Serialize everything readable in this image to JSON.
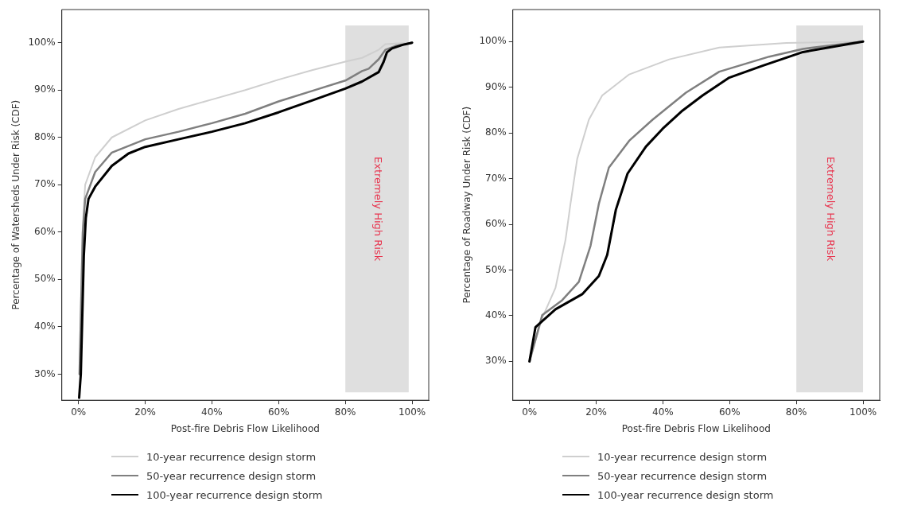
{
  "chart_data": [
    {
      "type": "line",
      "xlabel": "Post-fire Debris Flow Likelihood",
      "ylabel": "Percentage of Watersheds Under Risk (CDF)",
      "xlim": [
        -5,
        105
      ],
      "ylim": [
        24.5,
        107
      ],
      "xticks": [
        {
          "value": 0,
          "label": "0%"
        },
        {
          "value": 20,
          "label": "20%"
        },
        {
          "value": 40,
          "label": "40%"
        },
        {
          "value": 60,
          "label": "60%"
        },
        {
          "value": 80,
          "label": "80%"
        },
        {
          "value": 100,
          "label": "100%"
        }
      ],
      "yticks": [
        {
          "value": 30,
          "label": "30%"
        },
        {
          "value": 40,
          "label": "40%"
        },
        {
          "value": 50,
          "label": "50%"
        },
        {
          "value": 60,
          "label": "60%"
        },
        {
          "value": 70,
          "label": "70%"
        },
        {
          "value": 80,
          "label": "80%"
        },
        {
          "value": 90,
          "label": "90%"
        },
        {
          "value": 100,
          "label": "100%"
        }
      ],
      "grid": false,
      "legend": "bottom",
      "line_style": "solid",
      "bands": [
        {
          "axis": "x",
          "from": 80,
          "to": 99,
          "label": "Extremely High Risk",
          "color": "#d9d9d9"
        }
      ],
      "series": [
        {
          "name": "10-year recurrence design storm",
          "color": "#cfcfcf",
          "x": [
            0.3,
            0.7,
            1.2,
            2,
            5,
            10,
            20,
            30,
            40,
            50,
            60,
            70,
            80,
            85,
            90,
            92,
            100
          ],
          "values": [
            30,
            45,
            60,
            70,
            75.8,
            80,
            83.6,
            86,
            88,
            90,
            92.2,
            94.2,
            96,
            96.8,
            98.5,
            99.7,
            100
          ]
        },
        {
          "name": "50-year recurrence design storm",
          "color": "#7f7f7f",
          "x": [
            0.3,
            0.8,
            1.3,
            2,
            5,
            10,
            20,
            30,
            40,
            50,
            60,
            70,
            80,
            85,
            87,
            90,
            92,
            95,
            100
          ],
          "values": [
            30,
            45,
            60,
            67,
            72.7,
            76.8,
            79.6,
            81.2,
            83,
            85,
            87.6,
            89.8,
            92,
            94,
            94.5,
            96.5,
            98.5,
            99.3,
            100
          ]
        },
        {
          "name": "100-year recurrence design storm",
          "color": "#000000",
          "x": [
            0.2,
            0.7,
            1.1,
            1.6,
            2.2,
            3,
            5,
            10,
            15,
            20,
            30,
            40,
            50,
            60,
            70,
            80,
            85,
            90,
            91.5,
            92.5,
            94,
            97,
            100
          ],
          "values": [
            25,
            30,
            41,
            55,
            63,
            67,
            69.6,
            74,
            76.6,
            78,
            79.6,
            81.2,
            83,
            85.3,
            87.8,
            90.3,
            91.8,
            93.8,
            96,
            98,
            98.8,
            99.5,
            100
          ]
        }
      ]
    },
    {
      "type": "line",
      "xlabel": "Post-fire Debris Flow Likelihood",
      "ylabel": "Percentage of Roadway Under Risk (CDF)",
      "xlim": [
        -5,
        105
      ],
      "ylim": [
        21.5,
        107
      ],
      "xticks": [
        {
          "value": 0,
          "label": "0%"
        },
        {
          "value": 20,
          "label": "20%"
        },
        {
          "value": 40,
          "label": "40%"
        },
        {
          "value": 60,
          "label": "60%"
        },
        {
          "value": 80,
          "label": "80%"
        },
        {
          "value": 100,
          "label": "100%"
        }
      ],
      "yticks": [
        {
          "value": 30,
          "label": "30%"
        },
        {
          "value": 40,
          "label": "40%"
        },
        {
          "value": 50,
          "label": "50%"
        },
        {
          "value": 60,
          "label": "60%"
        },
        {
          "value": 70,
          "label": "70%"
        },
        {
          "value": 80,
          "label": "80%"
        },
        {
          "value": 90,
          "label": "90%"
        },
        {
          "value": 100,
          "label": "100%"
        }
      ],
      "grid": false,
      "legend": "bottom",
      "line_style": "solid",
      "bands": [
        {
          "axis": "x",
          "from": 80,
          "to": 100,
          "label": "Extremely High Risk",
          "color": "#d9d9d9"
        }
      ],
      "series": [
        {
          "name": "10-year recurrence design storm",
          "color": "#cfcfcf",
          "x": [
            0,
            3.8,
            7.8,
            10.8,
            12.3,
            14.3,
            17.8,
            21.8,
            29.9,
            41.9,
            56.9,
            77,
            100
          ],
          "values": [
            30,
            39.5,
            46.1,
            56.6,
            64.5,
            74.3,
            82.9,
            88.2,
            92.8,
            96.1,
            98.7,
            99.7,
            100
          ]
        },
        {
          "name": "50-year recurrence design storm",
          "color": "#7f7f7f",
          "x": [
            0,
            3.8,
            9.8,
            14.8,
            18.3,
            20.8,
            23.8,
            29.9,
            36.9,
            46.9,
            56.9,
            71.9,
            82,
            100
          ],
          "values": [
            30,
            40.1,
            43.4,
            47.4,
            55.3,
            64.5,
            72.4,
            78.3,
            82.9,
            88.8,
            93.4,
            96.7,
            98.4,
            100
          ]
        },
        {
          "name": "100-year recurrence design storm",
          "color": "#000000",
          "x": [
            0,
            1.8,
            7.8,
            15.8,
            20.8,
            23.3,
            25.9,
            29.4,
            34.9,
            39.9,
            45.9,
            51.9,
            59.9,
            69.9,
            82,
            100
          ],
          "values": [
            30,
            37.5,
            41.4,
            44.7,
            48.7,
            53.3,
            63.2,
            71.1,
            77,
            80.9,
            84.9,
            88.2,
            92.1,
            94.7,
            97.7,
            100
          ]
        }
      ]
    }
  ]
}
